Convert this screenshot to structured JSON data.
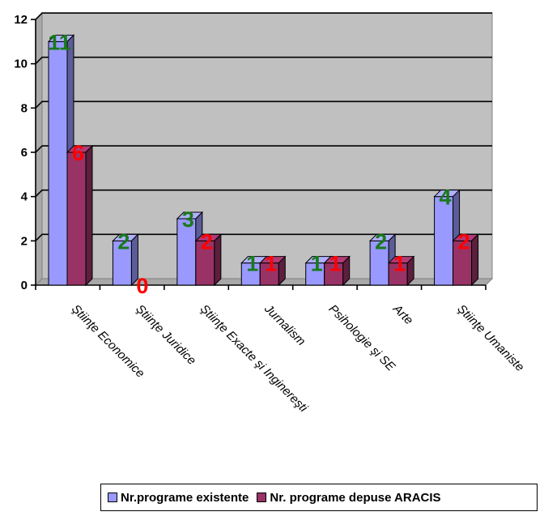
{
  "chart_data": {
    "type": "bar",
    "categories": [
      "Ştiinţe Economice",
      "Ştiinţe Juridice",
      "Ştiinţe Exacte şi Inginereşti",
      "Jurnalism",
      "Psihologie şi SE",
      "Arte",
      "Ştiinţe Umaniste"
    ],
    "series": [
      {
        "name": "Nr.programe existente",
        "values": [
          11,
          2,
          3,
          1,
          1,
          2,
          4
        ],
        "color": "#9999ff",
        "label_color": "#1a7a1a"
      },
      {
        "name": "Nr. programe depuse ARACIS",
        "values": [
          6,
          0,
          2,
          1,
          1,
          1,
          2
        ],
        "color": "#993366",
        "label_color": "#ff0000"
      }
    ],
    "yticks": [
      "0",
      "2",
      "4",
      "6",
      "8",
      "10",
      "12"
    ],
    "ylim": [
      0,
      12
    ],
    "grid": true,
    "legend_position": "bottom",
    "plot_background": "#c0c0c0"
  }
}
